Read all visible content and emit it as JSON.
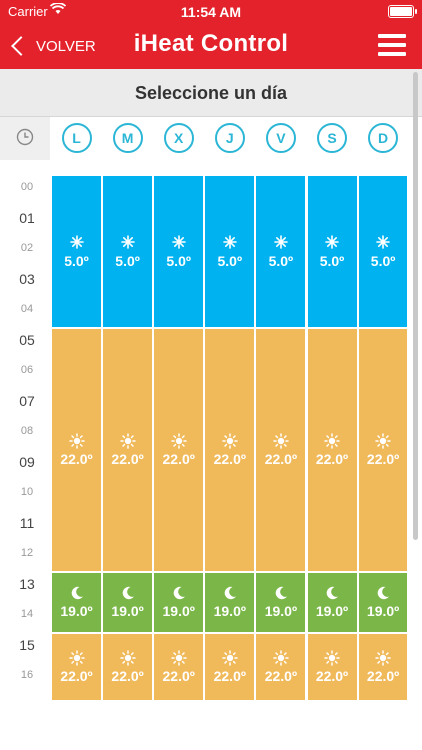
{
  "status_bar": {
    "carrier": "Carrier",
    "time": "11:54 AM"
  },
  "nav": {
    "back_label": "VOLVER",
    "title": "iHeat Control"
  },
  "subheader": {
    "label": "Seleccione un día"
  },
  "days": [
    "L",
    "M",
    "X",
    "J",
    "V",
    "S",
    "D"
  ],
  "hours": [
    "00",
    "01",
    "02",
    "03",
    "04",
    "05",
    "06",
    "07",
    "08",
    "09",
    "10",
    "11",
    "12",
    "13",
    "14",
    "15",
    "16"
  ],
  "schedule": [
    {
      "mode": "antifreeze",
      "icon": "snowflake-icon",
      "temp": "5.0º",
      "color": "#00b3f0",
      "from_hour": 0,
      "to_hour": 5
    },
    {
      "mode": "comfort",
      "icon": "sun-icon",
      "temp": "22.0º",
      "color": "#f0b95a",
      "from_hour": 5,
      "to_hour": 13
    },
    {
      "mode": "night",
      "icon": "moon-icon",
      "temp": "19.0º",
      "color": "#7ab648",
      "from_hour": 13,
      "to_hour": 15
    },
    {
      "mode": "comfort",
      "icon": "sun-icon",
      "temp": "22.0º",
      "color": "#f0b95a",
      "from_hour": 15,
      "to_hour": 17.25
    }
  ],
  "colors": {
    "header_red": "#e4222c",
    "day_circle": "#2bb6d6"
  }
}
